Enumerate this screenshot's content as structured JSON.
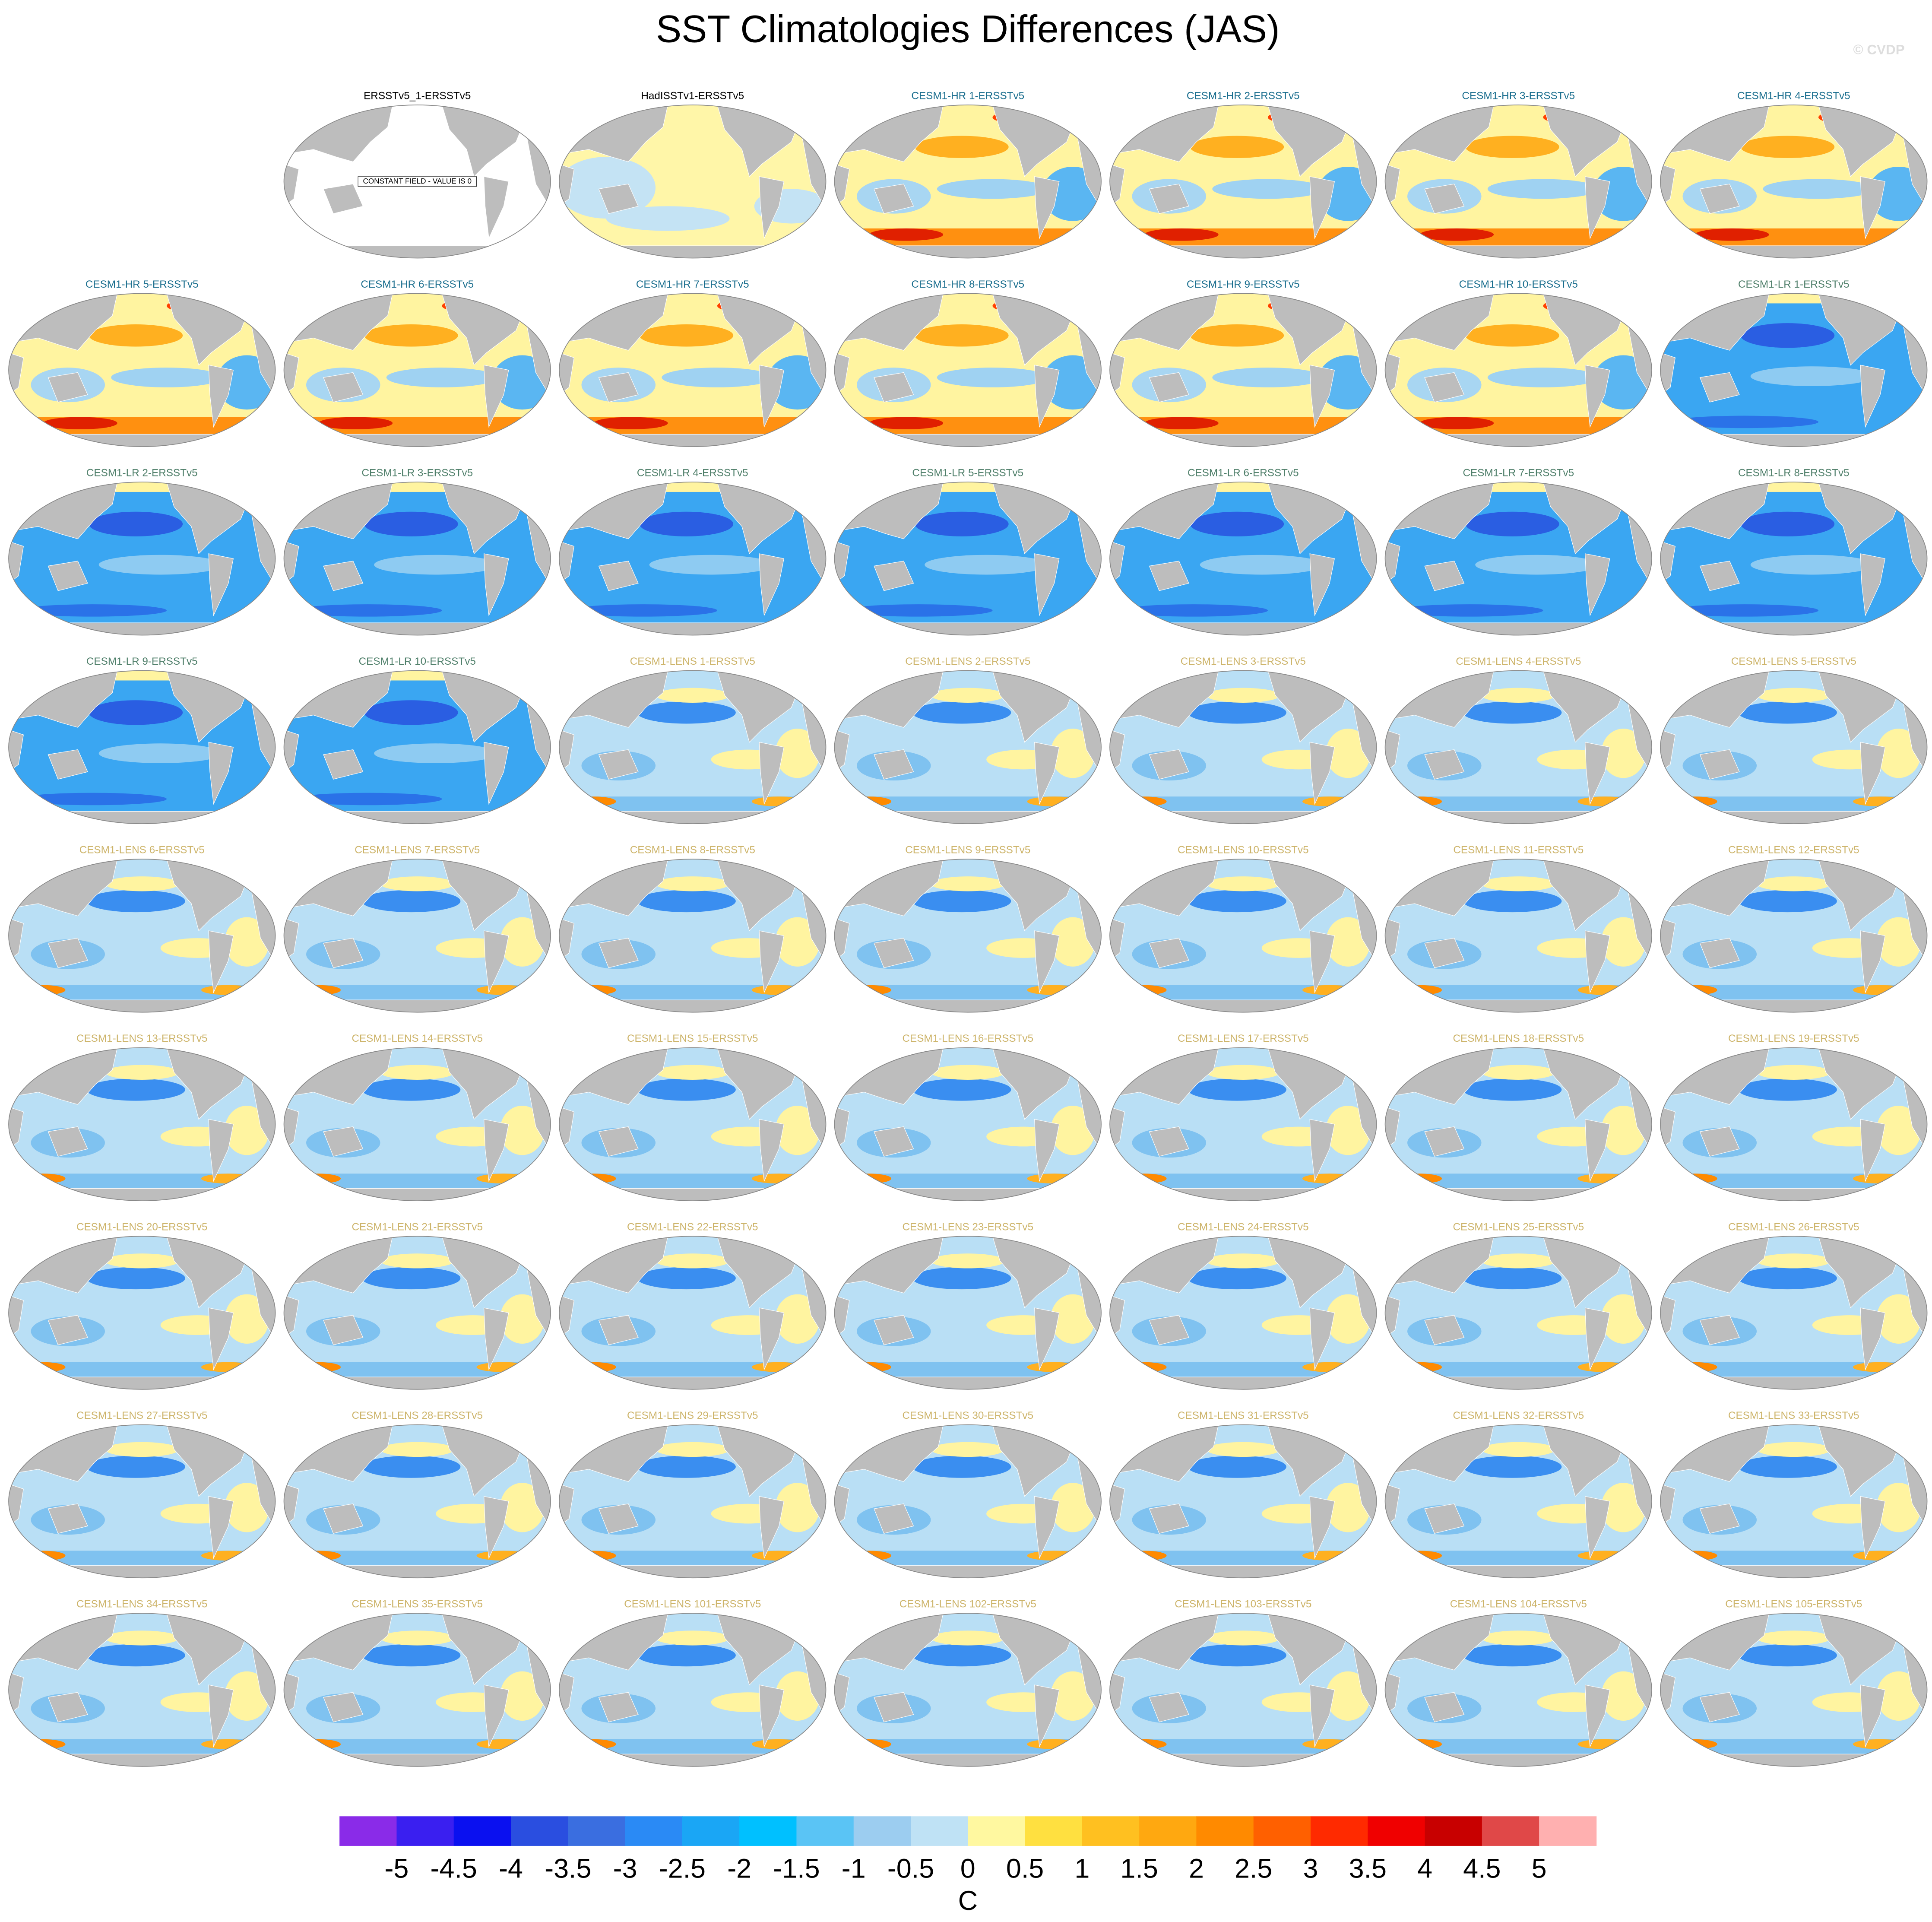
{
  "title": "SST Climatologies Differences (JAS)",
  "watermark": "© CVDP",
  "panels": [
    {
      "title": "ERSSTv5_1-ERSSTv5",
      "color": "#000000",
      "annotation": "CONSTANT FIELD - VALUE IS 0"
    },
    {
      "title": "HadISSTv1-ERSSTv5",
      "color": "#000000"
    },
    {
      "title": "CESM1-HR 1-ERSSTv5",
      "color": "#1a6e8e"
    },
    {
      "title": "CESM1-HR 2-ERSSTv5",
      "color": "#1a6e8e"
    },
    {
      "title": "CESM1-HR 3-ERSSTv5",
      "color": "#1a6e8e"
    },
    {
      "title": "CESM1-HR 4-ERSSTv5",
      "color": "#1a6e8e"
    },
    {
      "title": "CESM1-HR 5-ERSSTv5",
      "color": "#1a6e8e"
    },
    {
      "title": "CESM1-HR 6-ERSSTv5",
      "color": "#1a6e8e"
    },
    {
      "title": "CESM1-HR 7-ERSSTv5",
      "color": "#1a6e8e"
    },
    {
      "title": "CESM1-HR 8-ERSSTv5",
      "color": "#1a6e8e"
    },
    {
      "title": "CESM1-HR 9-ERSSTv5",
      "color": "#1a6e8e"
    },
    {
      "title": "CESM1-HR 10-ERSSTv5",
      "color": "#1a6e8e"
    },
    {
      "title": "CESM1-LR 1-ERSSTv5",
      "color": "#4f7f6a"
    },
    {
      "title": "CESM1-LR 2-ERSSTv5",
      "color": "#4f7f6a"
    },
    {
      "title": "CESM1-LR 3-ERSSTv5",
      "color": "#4f7f6a"
    },
    {
      "title": "CESM1-LR 4-ERSSTv5",
      "color": "#4f7f6a"
    },
    {
      "title": "CESM1-LR 5-ERSSTv5",
      "color": "#4f7f6a"
    },
    {
      "title": "CESM1-LR 6-ERSSTv5",
      "color": "#4f7f6a"
    },
    {
      "title": "CESM1-LR 7-ERSSTv5",
      "color": "#4f7f6a"
    },
    {
      "title": "CESM1-LR 8-ERSSTv5",
      "color": "#4f7f6a"
    },
    {
      "title": "CESM1-LR 9-ERSSTv5",
      "color": "#4f7f6a"
    },
    {
      "title": "CESM1-LR 10-ERSSTv5",
      "color": "#4f7f6a"
    },
    {
      "title": "CESM1-LENS 1-ERSSTv5",
      "color": "#cdb46a"
    },
    {
      "title": "CESM1-LENS 2-ERSSTv5",
      "color": "#cdb46a"
    },
    {
      "title": "CESM1-LENS 3-ERSSTv5",
      "color": "#cdb46a"
    },
    {
      "title": "CESM1-LENS 4-ERSSTv5",
      "color": "#cdb46a"
    },
    {
      "title": "CESM1-LENS 5-ERSSTv5",
      "color": "#cdb46a"
    },
    {
      "title": "CESM1-LENS 6-ERSSTv5",
      "color": "#cdb46a"
    },
    {
      "title": "CESM1-LENS 7-ERSSTv5",
      "color": "#cdb46a"
    },
    {
      "title": "CESM1-LENS 8-ERSSTv5",
      "color": "#cdb46a"
    },
    {
      "title": "CESM1-LENS 9-ERSSTv5",
      "color": "#cdb46a"
    },
    {
      "title": "CESM1-LENS 10-ERSSTv5",
      "color": "#cdb46a"
    },
    {
      "title": "CESM1-LENS 11-ERSSTv5",
      "color": "#cdb46a"
    },
    {
      "title": "CESM1-LENS 12-ERSSTv5",
      "color": "#cdb46a"
    },
    {
      "title": "CESM1-LENS 13-ERSSTv5",
      "color": "#cdb46a"
    },
    {
      "title": "CESM1-LENS 14-ERSSTv5",
      "color": "#cdb46a"
    },
    {
      "title": "CESM1-LENS 15-ERSSTv5",
      "color": "#cdb46a"
    },
    {
      "title": "CESM1-LENS 16-ERSSTv5",
      "color": "#cdb46a"
    },
    {
      "title": "CESM1-LENS 17-ERSSTv5",
      "color": "#cdb46a"
    },
    {
      "title": "CESM1-LENS 18-ERSSTv5",
      "color": "#cdb46a"
    },
    {
      "title": "CESM1-LENS 19-ERSSTv5",
      "color": "#cdb46a"
    },
    {
      "title": "CESM1-LENS 20-ERSSTv5",
      "color": "#cdb46a"
    },
    {
      "title": "CESM1-LENS 21-ERSSTv5",
      "color": "#cdb46a"
    },
    {
      "title": "CESM1-LENS 22-ERSSTv5",
      "color": "#cdb46a"
    },
    {
      "title": "CESM1-LENS 23-ERSSTv5",
      "color": "#cdb46a"
    },
    {
      "title": "CESM1-LENS 24-ERSSTv5",
      "color": "#cdb46a"
    },
    {
      "title": "CESM1-LENS 25-ERSSTv5",
      "color": "#cdb46a"
    },
    {
      "title": "CESM1-LENS 26-ERSSTv5",
      "color": "#cdb46a"
    },
    {
      "title": "CESM1-LENS 27-ERSSTv5",
      "color": "#cdb46a"
    },
    {
      "title": "CESM1-LENS 28-ERSSTv5",
      "color": "#cdb46a"
    },
    {
      "title": "CESM1-LENS 29-ERSSTv5",
      "color": "#cdb46a"
    },
    {
      "title": "CESM1-LENS 30-ERSSTv5",
      "color": "#cdb46a"
    },
    {
      "title": "CESM1-LENS 31-ERSSTv5",
      "color": "#cdb46a"
    },
    {
      "title": "CESM1-LENS 32-ERSSTv5",
      "color": "#cdb46a"
    },
    {
      "title": "CESM1-LENS 33-ERSSTv5",
      "color": "#cdb46a"
    },
    {
      "title": "CESM1-LENS 34-ERSSTv5",
      "color": "#cdb46a"
    },
    {
      "title": "CESM1-LENS 35-ERSSTv5",
      "color": "#cdb46a"
    },
    {
      "title": "CESM1-LENS 101-ERSSTv5",
      "color": "#cdb46a"
    },
    {
      "title": "CESM1-LENS 102-ERSSTv5",
      "color": "#cdb46a"
    },
    {
      "title": "CESM1-LENS 103-ERSSTv5",
      "color": "#cdb46a"
    },
    {
      "title": "CESM1-LENS 104-ERSSTv5",
      "color": "#cdb46a"
    },
    {
      "title": "CESM1-LENS 105-ERSSTv5",
      "color": "#cdb46a"
    }
  ],
  "colorbar": {
    "ticks": [
      -5,
      -4.5,
      -4,
      -3.5,
      -3,
      -2.5,
      -2,
      -1.5,
      -1,
      -0.5,
      0,
      0.5,
      1,
      1.5,
      2,
      2.5,
      3,
      3.5,
      4,
      4.5,
      5
    ],
    "colors": [
      "#8a2be8",
      "#3a1ff0",
      "#0a10f0",
      "#2a4ee0",
      "#3a6ee0",
      "#2a8af5",
      "#1aa6f5",
      "#00c0ff",
      "#5ac4f5",
      "#9ccdf0",
      "#bfe2f5",
      "#fff8a0",
      "#ffe040",
      "#ffc020",
      "#ffa810",
      "#ff8a00",
      "#ff6000",
      "#ff2a00",
      "#f00000",
      "#c80000",
      "#e04848",
      "#ffb0b0"
    ],
    "label": "C"
  }
}
